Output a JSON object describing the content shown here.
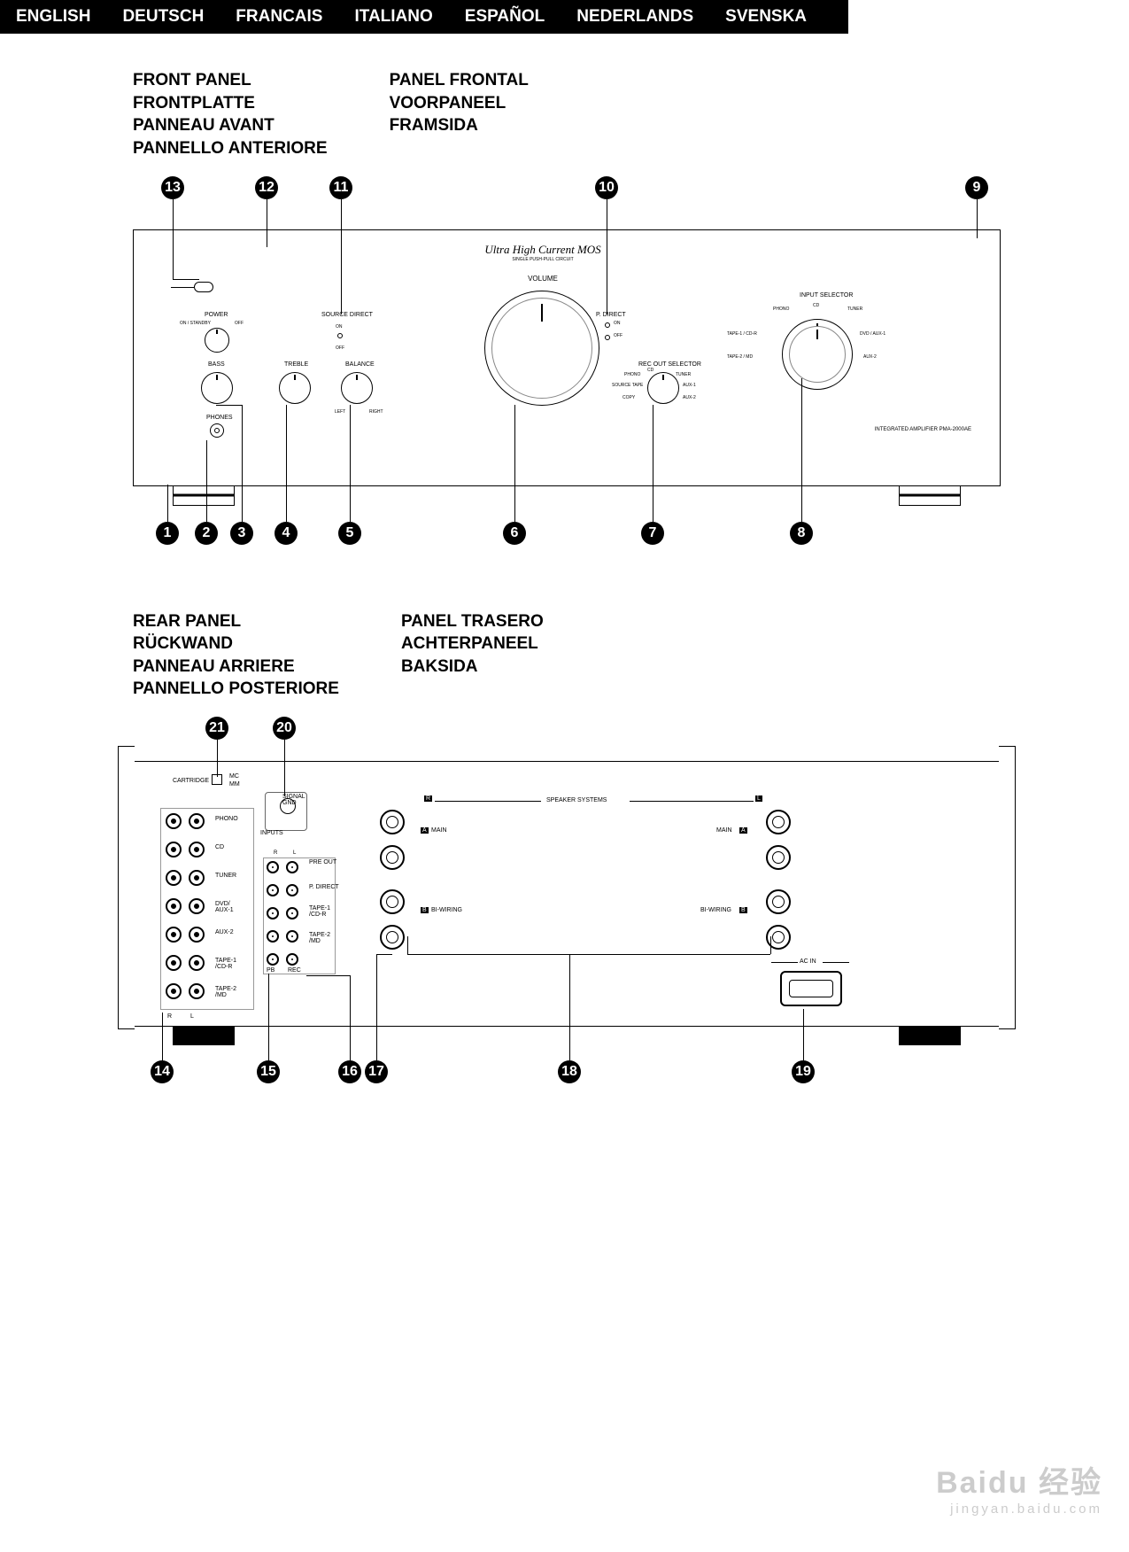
{
  "languages": [
    "ENGLISH",
    "DEUTSCH",
    "FRANCAIS",
    "ITALIANO",
    "ESPAÑOL",
    "NEDERLANDS",
    "SVENSKA"
  ],
  "front_titles_col1": [
    "FRONT PANEL",
    "FRONTPLATTE",
    "PANNEAU AVANT",
    "PANNELLO ANTERIORE"
  ],
  "front_titles_col2": [
    "PANEL FRONTAL",
    "VOORPANEEL",
    "FRAMSIDA"
  ],
  "rear_titles_col1": [
    "REAR PANEL",
    "RÜCKWAND",
    "PANNEAU ARRIERE",
    "PANNELLO POSTERIORE"
  ],
  "rear_titles_col2": [
    "PANEL TRASERO",
    "ACHTERPANEEL",
    "BAKSIDA"
  ],
  "front": {
    "brand": "Ultra High Current MOS",
    "brand_sub": "SINGLE PUSH-PULL CIRCUIT",
    "volume": "VOLUME",
    "power": "POWER",
    "power_on": "ON / STANDBY",
    "power_off": "OFF",
    "bass": "BASS",
    "treble": "TREBLE",
    "balance": "BALANCE",
    "balance_l": "LEFT",
    "balance_r": "RIGHT",
    "source_direct": "SOURCE DIRECT",
    "sd_on": "ON",
    "sd_off": "OFF",
    "p_direct": "P. DIRECT",
    "pd_on": "ON",
    "pd_off": "OFF",
    "phones": "PHONES",
    "rec_out": "REC OUT SELECTOR",
    "input_selector": "INPUT SELECTOR",
    "sel_phono": "PHONO",
    "sel_cd": "CD",
    "sel_tuner": "TUNER",
    "sel_dvd": "DVD / AUX-1",
    "sel_aux2": "AUX-2",
    "sel_tape1": "TAPE-1 / CD-R",
    "sel_tape2": "TAPE-2 / MD",
    "rec_phono": "PHONO",
    "rec_cd": "CD",
    "rec_tuner": "TUNER",
    "rec_aux1": "AUX-1",
    "rec_aux2": "AUX-2",
    "rec_copy": "COPY",
    "rec_source": "SOURCE TAPE",
    "model": "INTEGRATED AMPLIFIER  PMA-2000AE"
  },
  "rear": {
    "cartridge": "CARTRIDGE",
    "mc": "MC",
    "mm": "MM",
    "signal_gnd": "SIGNAL\nGND",
    "inputs": "INPUTS",
    "phono": "PHONO",
    "cd": "CD",
    "tuner": "TUNER",
    "dvd": "DVD/\nAUX-1",
    "aux2": "AUX-2",
    "tape1": "TAPE-1\n/CD-R",
    "tape2": "TAPE-2\n/MD",
    "preout": "PRE OUT",
    "pdirect": "P. DIRECT",
    "rec": "REC",
    "pb": "PB",
    "L": "L",
    "R": "R",
    "speaker_systems": "SPEAKER SYSTEMS",
    "main": "MAIN",
    "biwiring": "BI-WIRING",
    "A": "A",
    "B": "B",
    "ac_in": "AC IN"
  },
  "front_callouts_top": {
    "13": "!3",
    "12": "!2",
    "11": "!1",
    "10": "!0",
    "9": "o"
  },
  "front_callouts_bot": {
    "1": "q",
    "2": "w",
    "3": "e",
    "4": "r",
    "5": "t",
    "6": "y",
    "7": "u",
    "8": "i"
  },
  "rear_callouts_top": {
    "21": "@1",
    "20": "@0"
  },
  "rear_callouts_bot": {
    "14": "!4",
    "15": "!5",
    "16": "!6",
    "17": "!7",
    "18": "!8",
    "19": "!9"
  },
  "watermark": "Baidu 经验",
  "watermark_sub": "jingyan.baidu.com"
}
